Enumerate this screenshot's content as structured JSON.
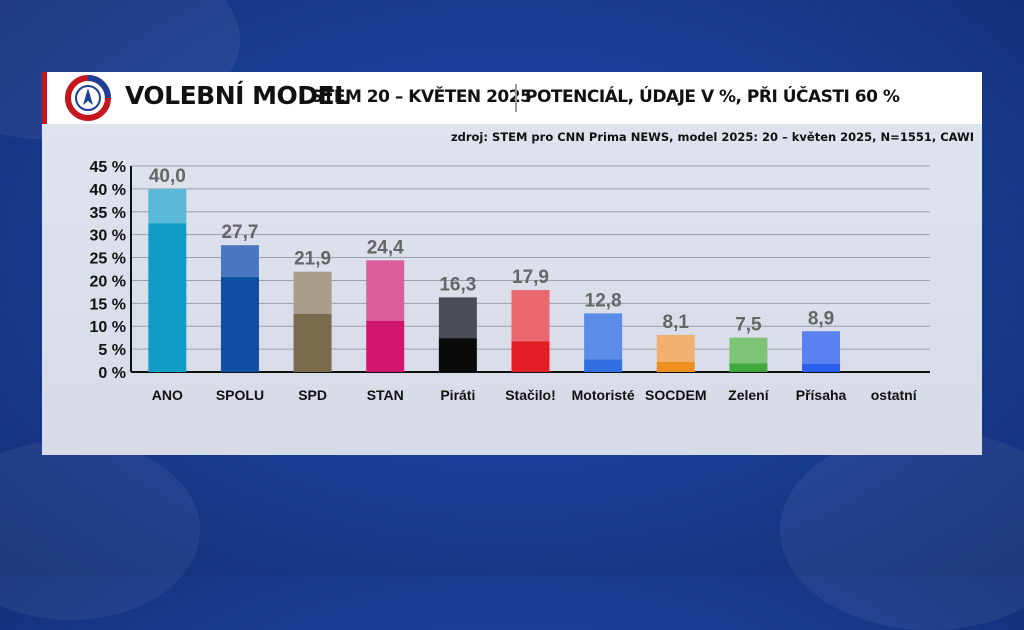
{
  "header": {
    "title_main": "VOLEBNÍ MODEL",
    "title_sub": "STEM 20 – KVĚTEN 2025",
    "title_extra": "POTENCIÁL, ÚDAJE V %, PŘI ÚČASTI 60 %"
  },
  "source": "zdroj: STEM pro CNN Prima NEWS, model 2025: 20 – květen 2025, N=1551, CAWI",
  "chart_data": {
    "type": "bar",
    "title": "VOLEBNÍ MODEL",
    "ylim": [
      0,
      45
    ],
    "yticks": [
      "0 %",
      "5 %",
      "10 %",
      "15 %",
      "20 %",
      "25 %",
      "30 %",
      "35 %",
      "40 %",
      "45 %"
    ],
    "grid": true,
    "categories": [
      "ANO",
      "SPOLU",
      "SPD",
      "STAN",
      "Piráti",
      "Stačilo!",
      "Motoristé",
      "SOCDEM",
      "Zelení",
      "Přísaha",
      "ostatní"
    ],
    "value_labels": [
      "40,0",
      "27,7",
      "21,9",
      "24,4",
      "16,3",
      "17,9",
      "12,8",
      "8,1",
      "7,5",
      "8,9",
      ""
    ],
    "series": [
      {
        "values": [
          32.5,
          20.8,
          12.7,
          11.2,
          7.4,
          6.7,
          2.8,
          2.2,
          1.9,
          1.8,
          0
        ]
      },
      {
        "values": [
          7.5,
          6.9,
          9.2,
          13.2,
          8.9,
          11.2,
          10.0,
          5.9,
          5.6,
          7.1,
          0
        ]
      }
    ],
    "colors": {
      "base": [
        "#0f9cc6",
        "#0e4fa3",
        "#7a6a4e",
        "#d2156e",
        "#0a0a0a",
        "#e41e26",
        "#2f6fe0",
        "#ee9020",
        "#3ea83a",
        "#2a5ff0",
        "#888888"
      ],
      "potential": [
        "#5ab8d8",
        "#4a77c2",
        "#a89c8a",
        "#dd5c9b",
        "#4a4d56",
        "#e96870",
        "#5b8de8",
        "#f0b070",
        "#7ec477",
        "#5981f2",
        "#bbbbbb"
      ]
    }
  }
}
